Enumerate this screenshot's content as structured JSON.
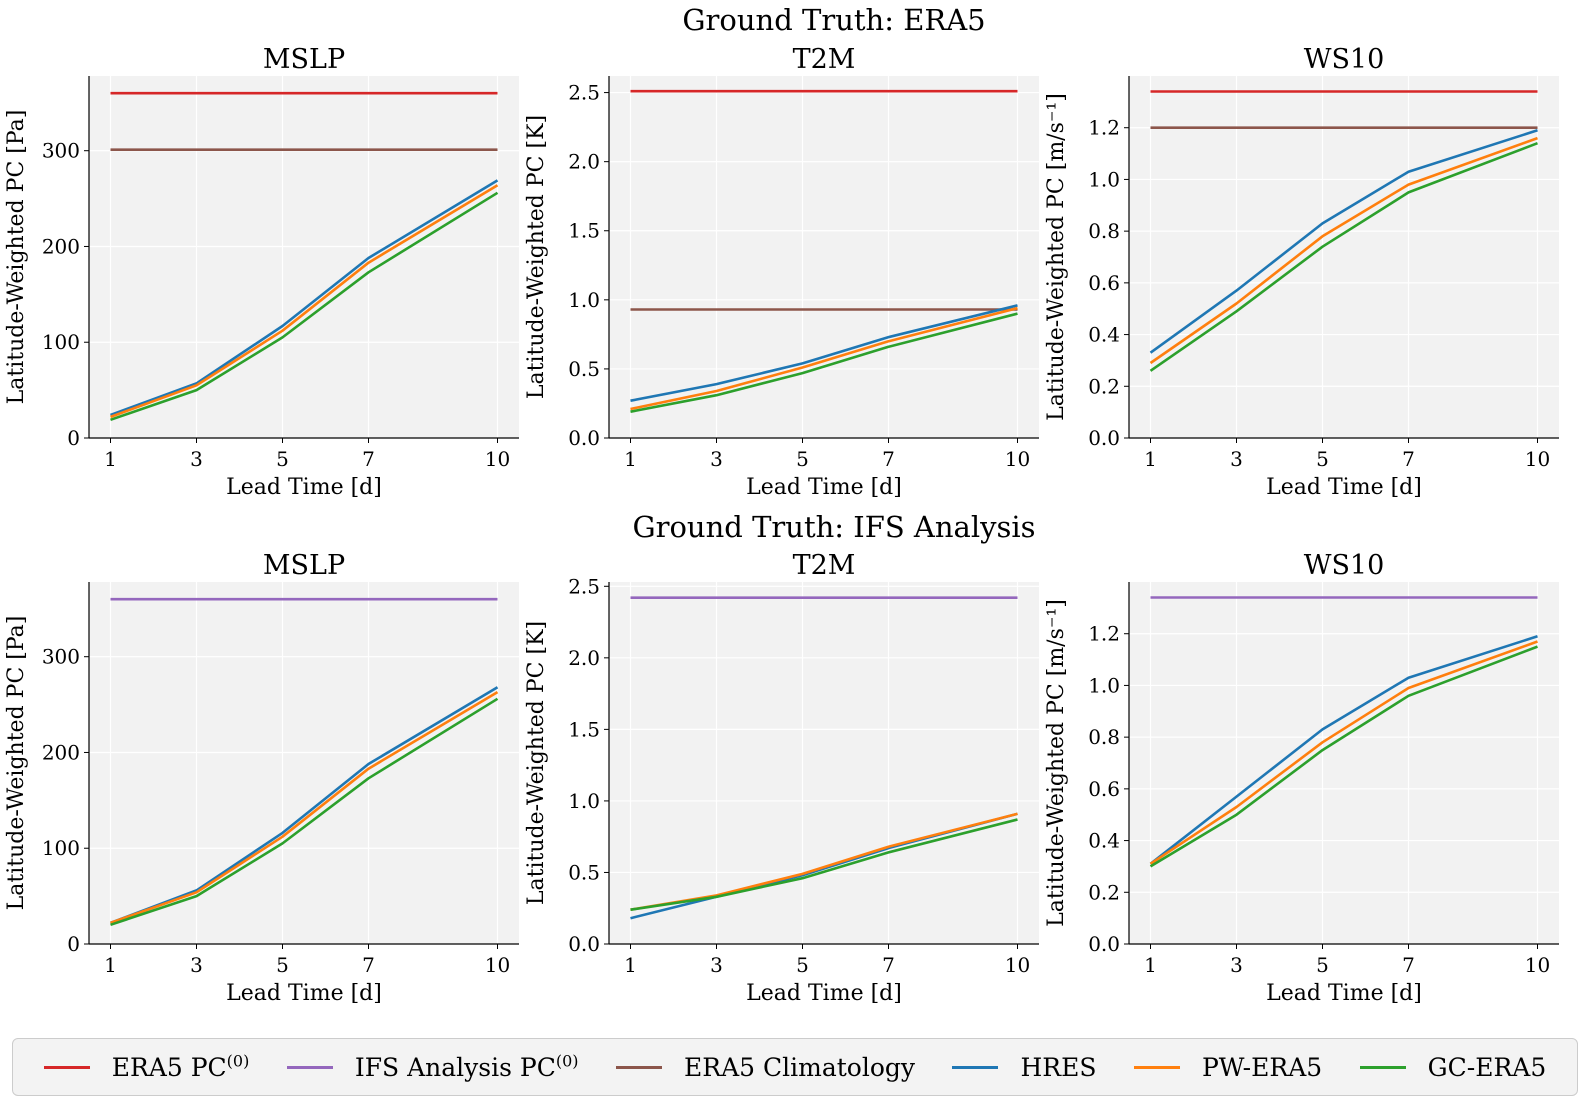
{
  "section_titles": [
    "Ground Truth: ERA5",
    "Ground Truth: IFS Analysis"
  ],
  "colors": {
    "ERA5 PC": "#d62728",
    "IFS Analysis PC": "#9467bd",
    "ERA5 Climatology": "#8c564b",
    "HRES": "#1f77b4",
    "PW-ERA5": "#ff7f0e",
    "GC-ERA5": "#2ca02c"
  },
  "legend": [
    {
      "key": "ERA5 PC",
      "label": "ERA5 PC",
      "sup": "(0)",
      "color": "#d62728"
    },
    {
      "key": "IFS Analysis PC",
      "label": "IFS Analysis PC",
      "sup": "(0)",
      "color": "#9467bd"
    },
    {
      "key": "ERA5 Climatology",
      "label": "ERA5 Climatology",
      "sup": "",
      "color": "#8c564b"
    },
    {
      "key": "HRES",
      "label": "HRES",
      "sup": "",
      "color": "#1f77b4"
    },
    {
      "key": "PW-ERA5",
      "label": "PW-ERA5",
      "sup": "",
      "color": "#ff7f0e"
    },
    {
      "key": "GC-ERA5",
      "label": "GC-ERA5",
      "sup": "",
      "color": "#2ca02c"
    }
  ],
  "chart_data": [
    {
      "type": "line",
      "group": "Ground Truth: ERA5",
      "title": "MSLP",
      "xlabel": "Lead Time [d]",
      "ylabel": "Latitude-Weighted PC [Pa]",
      "x": [
        1,
        3,
        5,
        7,
        10
      ],
      "xlim": [
        0.5,
        10.5
      ],
      "ylim": [
        0,
        378
      ],
      "xticks": [
        "1",
        "3",
        "5",
        "7",
        "10"
      ],
      "yticks": [
        0,
        100,
        200,
        300
      ],
      "ytick_labels": [
        "0",
        "100",
        "200",
        "300"
      ],
      "grid": true,
      "series": [
        {
          "name": "ERA5 PC",
          "values": [
            360,
            360,
            360,
            360,
            360
          ]
        },
        {
          "name": "ERA5 Climatology",
          "values": [
            301,
            301,
            301,
            301,
            301
          ]
        },
        {
          "name": "HRES",
          "values": [
            24,
            57,
            117,
            188,
            269
          ]
        },
        {
          "name": "PW-ERA5",
          "values": [
            22,
            55,
            112,
            183,
            264
          ]
        },
        {
          "name": "GC-ERA5",
          "values": [
            19,
            50,
            105,
            173,
            256
          ]
        }
      ]
    },
    {
      "type": "line",
      "group": "Ground Truth: ERA5",
      "title": "T2M",
      "xlabel": "Lead Time [d]",
      "ylabel": "Latitude-Weighted PC [K]",
      "x": [
        1,
        3,
        5,
        7,
        10
      ],
      "xlim": [
        0.5,
        10.5
      ],
      "ylim": [
        0,
        2.62
      ],
      "xticks": [
        "1",
        "3",
        "5",
        "7",
        "10"
      ],
      "yticks": [
        0,
        0.5,
        1,
        1.5,
        2,
        2.5
      ],
      "ytick_labels": [
        "0.0",
        "0.5",
        "1.0",
        "1.5",
        "2.0",
        "2.5"
      ],
      "grid": true,
      "series": [
        {
          "name": "ERA5 PC",
          "values": [
            2.51,
            2.51,
            2.51,
            2.51,
            2.51
          ]
        },
        {
          "name": "ERA5 Climatology",
          "values": [
            0.93,
            0.93,
            0.93,
            0.93,
            0.93
          ]
        },
        {
          "name": "HRES",
          "values": [
            0.27,
            0.39,
            0.54,
            0.73,
            0.96
          ]
        },
        {
          "name": "PW-ERA5",
          "values": [
            0.21,
            0.34,
            0.51,
            0.7,
            0.94
          ]
        },
        {
          "name": "GC-ERA5",
          "values": [
            0.19,
            0.31,
            0.47,
            0.66,
            0.9
          ]
        }
      ]
    },
    {
      "type": "line",
      "group": "Ground Truth: ERA5",
      "title": "WS10",
      "xlabel": "Lead Time [d]",
      "ylabel": "Latitude-Weighted PC [m/s⁻¹]",
      "x": [
        1,
        3,
        5,
        7,
        10
      ],
      "xlim": [
        0.5,
        10.5
      ],
      "ylim": [
        0,
        1.4
      ],
      "xticks": [
        "1",
        "3",
        "5",
        "7",
        "10"
      ],
      "yticks": [
        0,
        0.2,
        0.4,
        0.6,
        0.8,
        1,
        1.2
      ],
      "ytick_labels": [
        "0.0",
        "0.2",
        "0.4",
        "0.6",
        "0.8",
        "1.0",
        "1.2"
      ],
      "grid": true,
      "series": [
        {
          "name": "ERA5 PC",
          "values": [
            1.34,
            1.34,
            1.34,
            1.34,
            1.34
          ]
        },
        {
          "name": "ERA5 Climatology",
          "values": [
            1.2,
            1.2,
            1.2,
            1.2,
            1.2
          ]
        },
        {
          "name": "HRES",
          "values": [
            0.33,
            0.57,
            0.83,
            1.03,
            1.19
          ]
        },
        {
          "name": "PW-ERA5",
          "values": [
            0.29,
            0.52,
            0.78,
            0.98,
            1.16
          ]
        },
        {
          "name": "GC-ERA5",
          "values": [
            0.26,
            0.49,
            0.74,
            0.95,
            1.14
          ]
        }
      ]
    },
    {
      "type": "line",
      "group": "Ground Truth: IFS Analysis",
      "title": "MSLP",
      "xlabel": "Lead Time [d]",
      "ylabel": "Latitude-Weighted PC [Pa]",
      "x": [
        1,
        3,
        5,
        7,
        10
      ],
      "xlim": [
        0.5,
        10.5
      ],
      "ylim": [
        0,
        378
      ],
      "xticks": [
        "1",
        "3",
        "5",
        "7",
        "10"
      ],
      "yticks": [
        0,
        100,
        200,
        300
      ],
      "ytick_labels": [
        "0",
        "100",
        "200",
        "300"
      ],
      "grid": true,
      "series": [
        {
          "name": "IFS Analysis PC",
          "values": [
            360,
            360,
            360,
            360,
            360
          ]
        },
        {
          "name": "HRES",
          "values": [
            22,
            56,
            116,
            188,
            268
          ]
        },
        {
          "name": "PW-ERA5",
          "values": [
            22,
            54,
            112,
            183,
            263
          ]
        },
        {
          "name": "GC-ERA5",
          "values": [
            20,
            50,
            105,
            173,
            256
          ]
        }
      ]
    },
    {
      "type": "line",
      "group": "Ground Truth: IFS Analysis",
      "title": "T2M",
      "xlabel": "Lead Time [d]",
      "ylabel": "Latitude-Weighted PC [K]",
      "x": [
        1,
        3,
        5,
        7,
        10
      ],
      "xlim": [
        0.5,
        10.5
      ],
      "ylim": [
        0,
        2.53
      ],
      "xticks": [
        "1",
        "3",
        "5",
        "7",
        "10"
      ],
      "yticks": [
        0,
        0.5,
        1,
        1.5,
        2,
        2.5
      ],
      "ytick_labels": [
        "0.0",
        "0.5",
        "1.0",
        "1.5",
        "2.0",
        "2.5"
      ],
      "grid": true,
      "series": [
        {
          "name": "IFS Analysis PC",
          "values": [
            2.42,
            2.42,
            2.42,
            2.42,
            2.42
          ]
        },
        {
          "name": "HRES",
          "values": [
            0.18,
            0.33,
            0.48,
            0.67,
            0.91
          ]
        },
        {
          "name": "PW-ERA5",
          "values": [
            0.24,
            0.34,
            0.49,
            0.68,
            0.91
          ]
        },
        {
          "name": "GC-ERA5",
          "values": [
            0.24,
            0.33,
            0.46,
            0.64,
            0.87
          ]
        }
      ]
    },
    {
      "type": "line",
      "group": "Ground Truth: IFS Analysis",
      "title": "WS10",
      "xlabel": "Lead Time [d]",
      "ylabel": "Latitude-Weighted PC [m/s⁻¹]",
      "x": [
        1,
        3,
        5,
        7,
        10
      ],
      "xlim": [
        0.5,
        10.5
      ],
      "ylim": [
        0,
        1.4
      ],
      "xticks": [
        "1",
        "3",
        "5",
        "7",
        "10"
      ],
      "yticks": [
        0,
        0.2,
        0.4,
        0.6,
        0.8,
        1,
        1.2
      ],
      "ytick_labels": [
        "0.0",
        "0.2",
        "0.4",
        "0.6",
        "0.8",
        "1.0",
        "1.2"
      ],
      "grid": true,
      "series": [
        {
          "name": "IFS Analysis PC",
          "values": [
            1.34,
            1.34,
            1.34,
            1.34,
            1.34
          ]
        },
        {
          "name": "HRES",
          "values": [
            0.31,
            0.57,
            0.83,
            1.03,
            1.19
          ]
        },
        {
          "name": "PW-ERA5",
          "values": [
            0.31,
            0.53,
            0.78,
            0.99,
            1.17
          ]
        },
        {
          "name": "GC-ERA5",
          "values": [
            0.3,
            0.5,
            0.75,
            0.96,
            1.15
          ]
        }
      ]
    }
  ]
}
